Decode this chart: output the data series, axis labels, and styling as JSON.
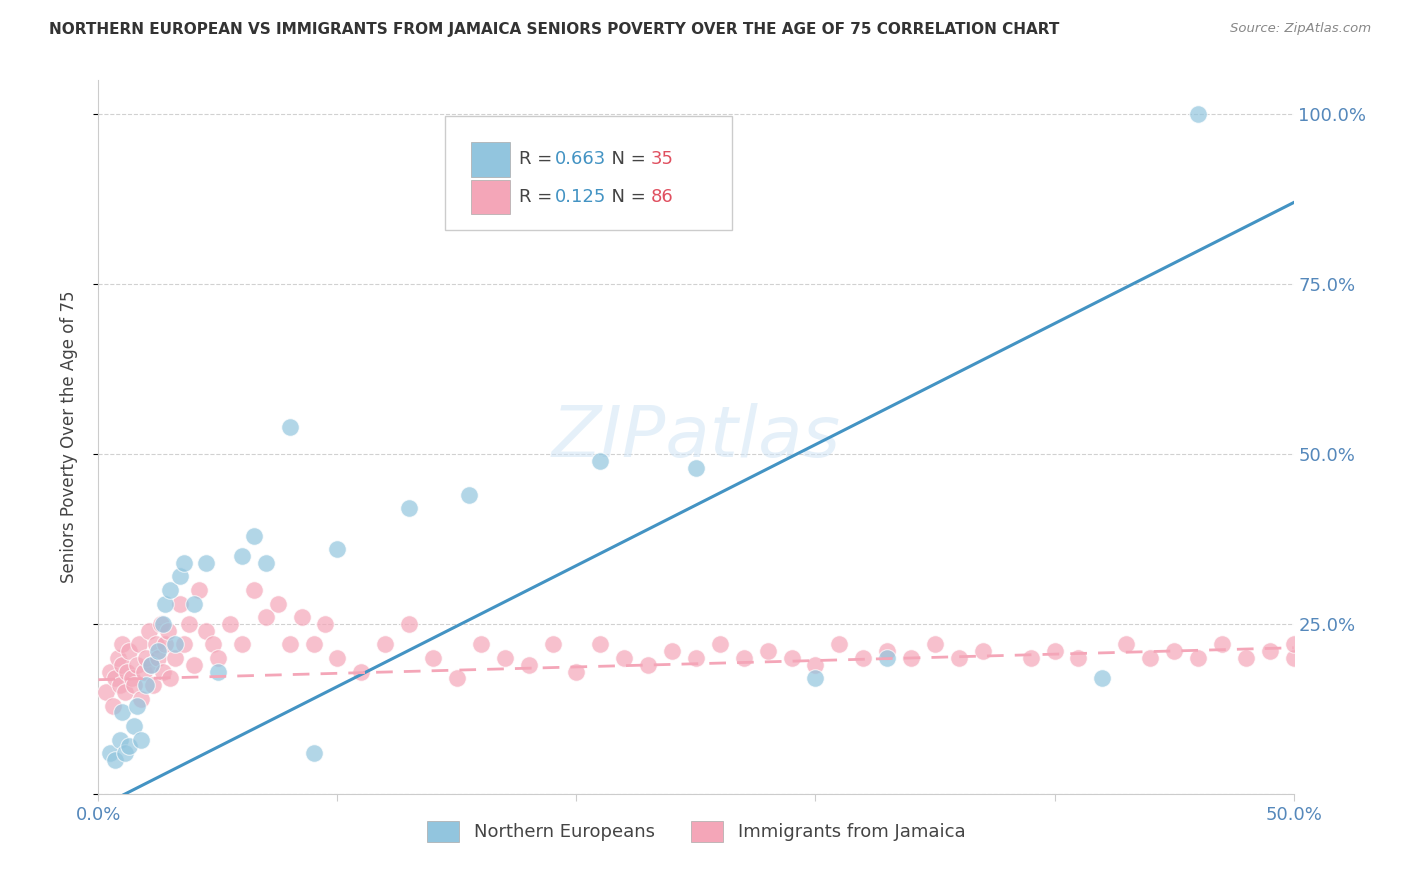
{
  "title": "NORTHERN EUROPEAN VS IMMIGRANTS FROM JAMAICA SENIORS POVERTY OVER THE AGE OF 75 CORRELATION CHART",
  "source": "Source: ZipAtlas.com",
  "ylabel": "Seniors Poverty Over the Age of 75",
  "xlim": [
    0.0,
    0.5
  ],
  "ylim": [
    0.0,
    1.05
  ],
  "blue_color": "#92c5de",
  "pink_color": "#f4a6b8",
  "blue_line_color": "#4393c3",
  "pink_line_color": "#f4a6b8",
  "R_blue": 0.663,
  "N_blue": 35,
  "R_pink": 0.125,
  "N_pink": 86,
  "watermark": "ZIPatlas",
  "background_color": "#ffffff",
  "grid_color": "#cccccc",
  "blue_line_y0": -0.02,
  "blue_line_y1": 0.87,
  "pink_line_y0": 0.168,
  "pink_line_y1": 0.215,
  "legend_R_blue_color": "#4393c3",
  "legend_N_blue_color": "#e05a6a",
  "legend_R_pink_color": "#e05a6a",
  "legend_N_pink_color": "#e05a6a",
  "blue_x": [
    0.005,
    0.007,
    0.009,
    0.01,
    0.011,
    0.013,
    0.015,
    0.016,
    0.018,
    0.02,
    0.022,
    0.025,
    0.027,
    0.028,
    0.03,
    0.032,
    0.034,
    0.036,
    0.04,
    0.045,
    0.05,
    0.06,
    0.065,
    0.07,
    0.08,
    0.09,
    0.1,
    0.13,
    0.155,
    0.21,
    0.25,
    0.3,
    0.33,
    0.42,
    0.46
  ],
  "blue_y": [
    0.06,
    0.05,
    0.08,
    0.12,
    0.06,
    0.07,
    0.1,
    0.13,
    0.08,
    0.16,
    0.19,
    0.21,
    0.25,
    0.28,
    0.3,
    0.22,
    0.32,
    0.34,
    0.28,
    0.34,
    0.18,
    0.35,
    0.38,
    0.34,
    0.54,
    0.06,
    0.36,
    0.42,
    0.44,
    0.49,
    0.48,
    0.17,
    0.2,
    0.17,
    1.0
  ],
  "pink_x": [
    0.003,
    0.005,
    0.006,
    0.007,
    0.008,
    0.009,
    0.01,
    0.01,
    0.011,
    0.012,
    0.013,
    0.014,
    0.015,
    0.016,
    0.017,
    0.018,
    0.019,
    0.02,
    0.021,
    0.022,
    0.023,
    0.024,
    0.025,
    0.026,
    0.027,
    0.028,
    0.029,
    0.03,
    0.032,
    0.034,
    0.036,
    0.038,
    0.04,
    0.042,
    0.045,
    0.048,
    0.05,
    0.055,
    0.06,
    0.065,
    0.07,
    0.075,
    0.08,
    0.085,
    0.09,
    0.095,
    0.1,
    0.11,
    0.12,
    0.13,
    0.14,
    0.15,
    0.16,
    0.17,
    0.18,
    0.19,
    0.2,
    0.21,
    0.22,
    0.23,
    0.24,
    0.25,
    0.26,
    0.27,
    0.28,
    0.29,
    0.3,
    0.31,
    0.32,
    0.33,
    0.34,
    0.35,
    0.36,
    0.37,
    0.39,
    0.4,
    0.41,
    0.43,
    0.44,
    0.45,
    0.46,
    0.47,
    0.48,
    0.49,
    0.5,
    0.5
  ],
  "pink_y": [
    0.15,
    0.18,
    0.13,
    0.17,
    0.2,
    0.16,
    0.19,
    0.22,
    0.15,
    0.18,
    0.21,
    0.17,
    0.16,
    0.19,
    0.22,
    0.14,
    0.18,
    0.2,
    0.24,
    0.19,
    0.16,
    0.22,
    0.2,
    0.25,
    0.18,
    0.22,
    0.24,
    0.17,
    0.2,
    0.28,
    0.22,
    0.25,
    0.19,
    0.3,
    0.24,
    0.22,
    0.2,
    0.25,
    0.22,
    0.3,
    0.26,
    0.28,
    0.22,
    0.26,
    0.22,
    0.25,
    0.2,
    0.18,
    0.22,
    0.25,
    0.2,
    0.17,
    0.22,
    0.2,
    0.19,
    0.22,
    0.18,
    0.22,
    0.2,
    0.19,
    0.21,
    0.2,
    0.22,
    0.2,
    0.21,
    0.2,
    0.19,
    0.22,
    0.2,
    0.21,
    0.2,
    0.22,
    0.2,
    0.21,
    0.2,
    0.21,
    0.2,
    0.22,
    0.2,
    0.21,
    0.2,
    0.22,
    0.2,
    0.21,
    0.2,
    0.22
  ]
}
